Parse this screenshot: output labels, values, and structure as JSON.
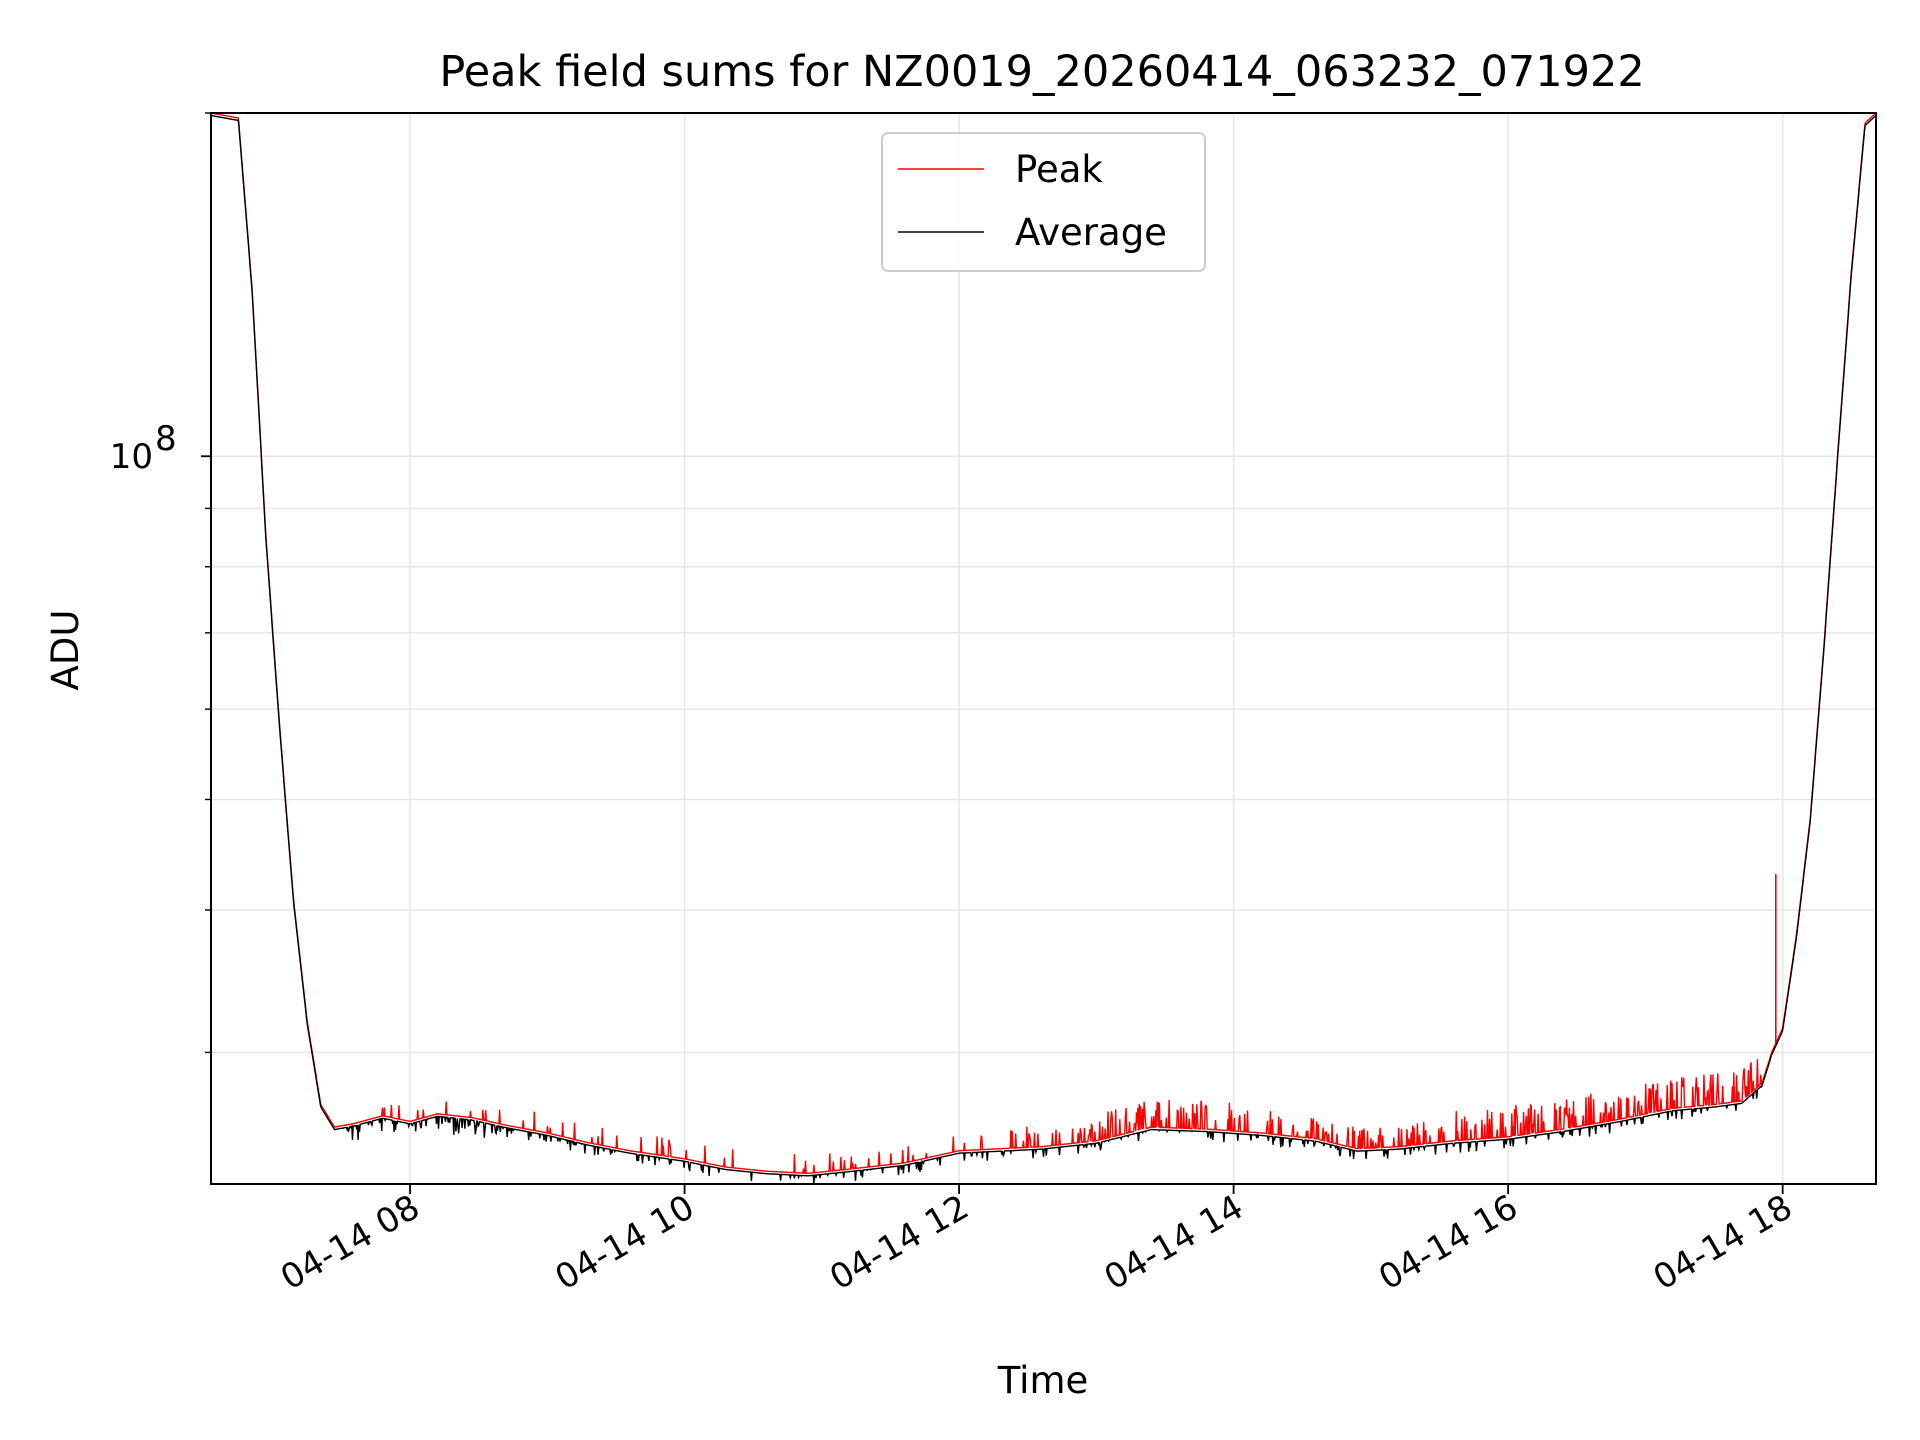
{
  "chart_data": {
    "type": "line",
    "title": "Peak field sums for NZ0019_20260414_063232_071922",
    "xlabel": "Time",
    "ylabel": "ADU",
    "yscale": "log",
    "grid": true,
    "legend": {
      "location": "upper-center",
      "entries": [
        "Peak",
        "Average"
      ]
    },
    "x_unit": "hours (local, 2026-04-14)",
    "xlim": [
      6.55,
      18.68
    ],
    "ylim": [
      23000000,
      200000000
    ],
    "x_ticks": [
      8,
      10,
      12,
      14,
      16,
      18
    ],
    "x_tick_labels": [
      "04-14 08",
      "04-14 10",
      "04-14 12",
      "04-14 14",
      "04-14 16",
      "04-14 18"
    ],
    "y_major_ticks": [
      100000000
    ],
    "y_major_tick_labels": [
      {
        "base": "10",
        "exp": "8"
      }
    ],
    "y_minor_ticks": [
      30000000,
      40000000,
      50000000,
      60000000,
      70000000,
      80000000,
      90000000,
      200000000
    ],
    "series": [
      {
        "name": "Peak",
        "color": "#ff0000",
        "x": [
          6.55,
          6.75,
          6.85,
          6.95,
          7.05,
          7.15,
          7.25,
          7.35,
          7.45,
          7.6,
          7.8,
          8.0,
          8.2,
          8.45,
          8.7,
          9.0,
          9.3,
          9.6,
          10.0,
          10.3,
          10.6,
          10.9,
          11.2,
          11.6,
          12.0,
          12.3,
          12.6,
          13.0,
          13.4,
          13.8,
          14.2,
          14.6,
          14.9,
          15.2,
          15.6,
          16.0,
          16.4,
          16.8,
          17.2,
          17.5,
          17.7,
          17.85,
          17.92,
          18.0,
          18.1,
          18.2,
          18.3,
          18.4,
          18.5,
          18.6,
          18.68
        ],
        "values": [
          200000000,
          198000000,
          140000000,
          85000000,
          58000000,
          41000000,
          32000000,
          27000000,
          25800000,
          26000000,
          26400000,
          26100000,
          26500000,
          26300000,
          25900000,
          25500000,
          25000000,
          24600000,
          24200000,
          23800000,
          23600000,
          23500000,
          23700000,
          24000000,
          24600000,
          24700000,
          24800000,
          25100000,
          25800000,
          25700000,
          25500000,
          25200000,
          24700000,
          24800000,
          25100000,
          25300000,
          25700000,
          26200000,
          26800000,
          27000000,
          27200000,
          28200000,
          30000000,
          31500000,
          38000000,
          48000000,
          68000000,
          100000000,
          145000000,
          196000000,
          200000000
        ]
      },
      {
        "name": "Average",
        "color": "#000000",
        "x": [
          6.55,
          6.75,
          6.85,
          6.95,
          7.05,
          7.15,
          7.25,
          7.35,
          7.45,
          7.6,
          7.8,
          8.0,
          8.2,
          8.45,
          8.7,
          9.0,
          9.3,
          9.6,
          10.0,
          10.3,
          10.6,
          10.9,
          11.2,
          11.6,
          12.0,
          12.3,
          12.6,
          13.0,
          13.4,
          13.8,
          14.2,
          14.6,
          14.9,
          15.2,
          15.6,
          16.0,
          16.4,
          16.8,
          17.2,
          17.5,
          17.7,
          17.85,
          17.92,
          18.0,
          18.1,
          18.2,
          18.3,
          18.4,
          18.5,
          18.6,
          18.68
        ],
        "values": [
          200000000,
          198000000,
          140000000,
          85000000,
          58000000,
          41000000,
          32000000,
          27000000,
          25800000,
          26000000,
          26400000,
          26100000,
          26500000,
          26300000,
          25900000,
          25500000,
          25000000,
          24600000,
          24200000,
          23800000,
          23600000,
          23500000,
          23700000,
          24000000,
          24600000,
          24700000,
          24800000,
          25100000,
          25800000,
          25700000,
          25500000,
          25200000,
          24700000,
          24800000,
          25100000,
          25300000,
          25700000,
          26200000,
          26800000,
          27000000,
          27200000,
          28200000,
          30000000,
          31500000,
          38000000,
          48000000,
          68000000,
          100000000,
          145000000,
          196000000,
          200000000
        ]
      }
    ],
    "annotations": [
      {
        "series": "Peak",
        "x": 17.95,
        "value": 43000000,
        "note": "single tall spike"
      }
    ]
  }
}
